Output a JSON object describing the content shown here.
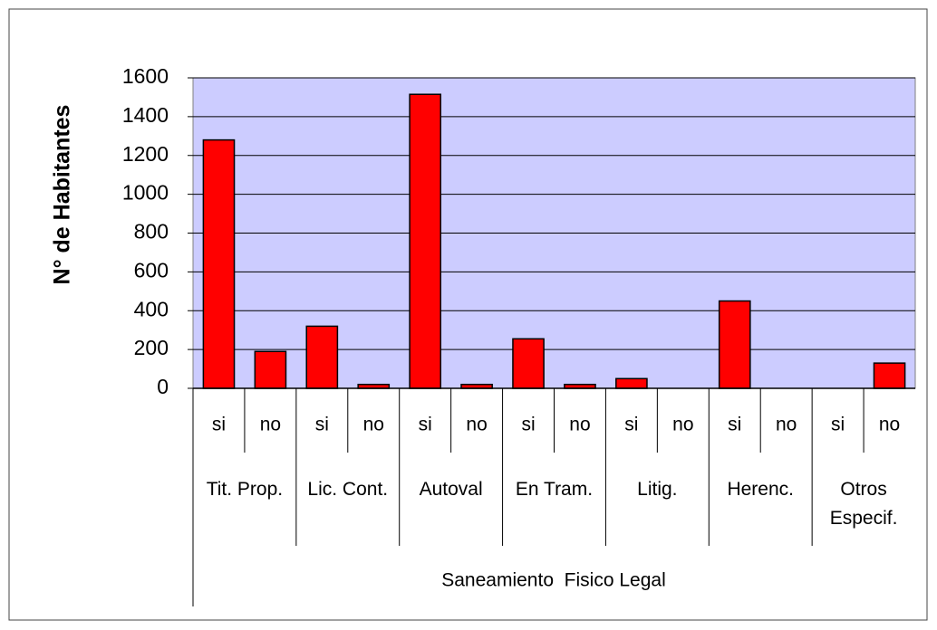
{
  "chart_data": {
    "type": "bar",
    "y_label": "N° de Habitantes",
    "x_label": "Saneamiento  Fisico Legal",
    "categories": [
      "si",
      "no",
      "si",
      "no",
      "si",
      "no",
      "si",
      "no",
      "si",
      "no",
      "si",
      "no",
      "si",
      "no"
    ],
    "groups": [
      "Tit. Prop.",
      "Lic. Cont.",
      "Autoval",
      "En Tram.",
      "Litig.",
      "Herenc.",
      "Otros Especif."
    ],
    "values": [
      1280,
      190,
      320,
      20,
      1515,
      20,
      255,
      20,
      50,
      0,
      450,
      0,
      0,
      130
    ],
    "color": "#ff0000",
    "plot_background": "#ccccff",
    "ylim": [
      0,
      1600
    ],
    "yticks": [
      0,
      200,
      400,
      600,
      800,
      1000,
      1200,
      1400,
      1600
    ],
    "grid": true
  }
}
